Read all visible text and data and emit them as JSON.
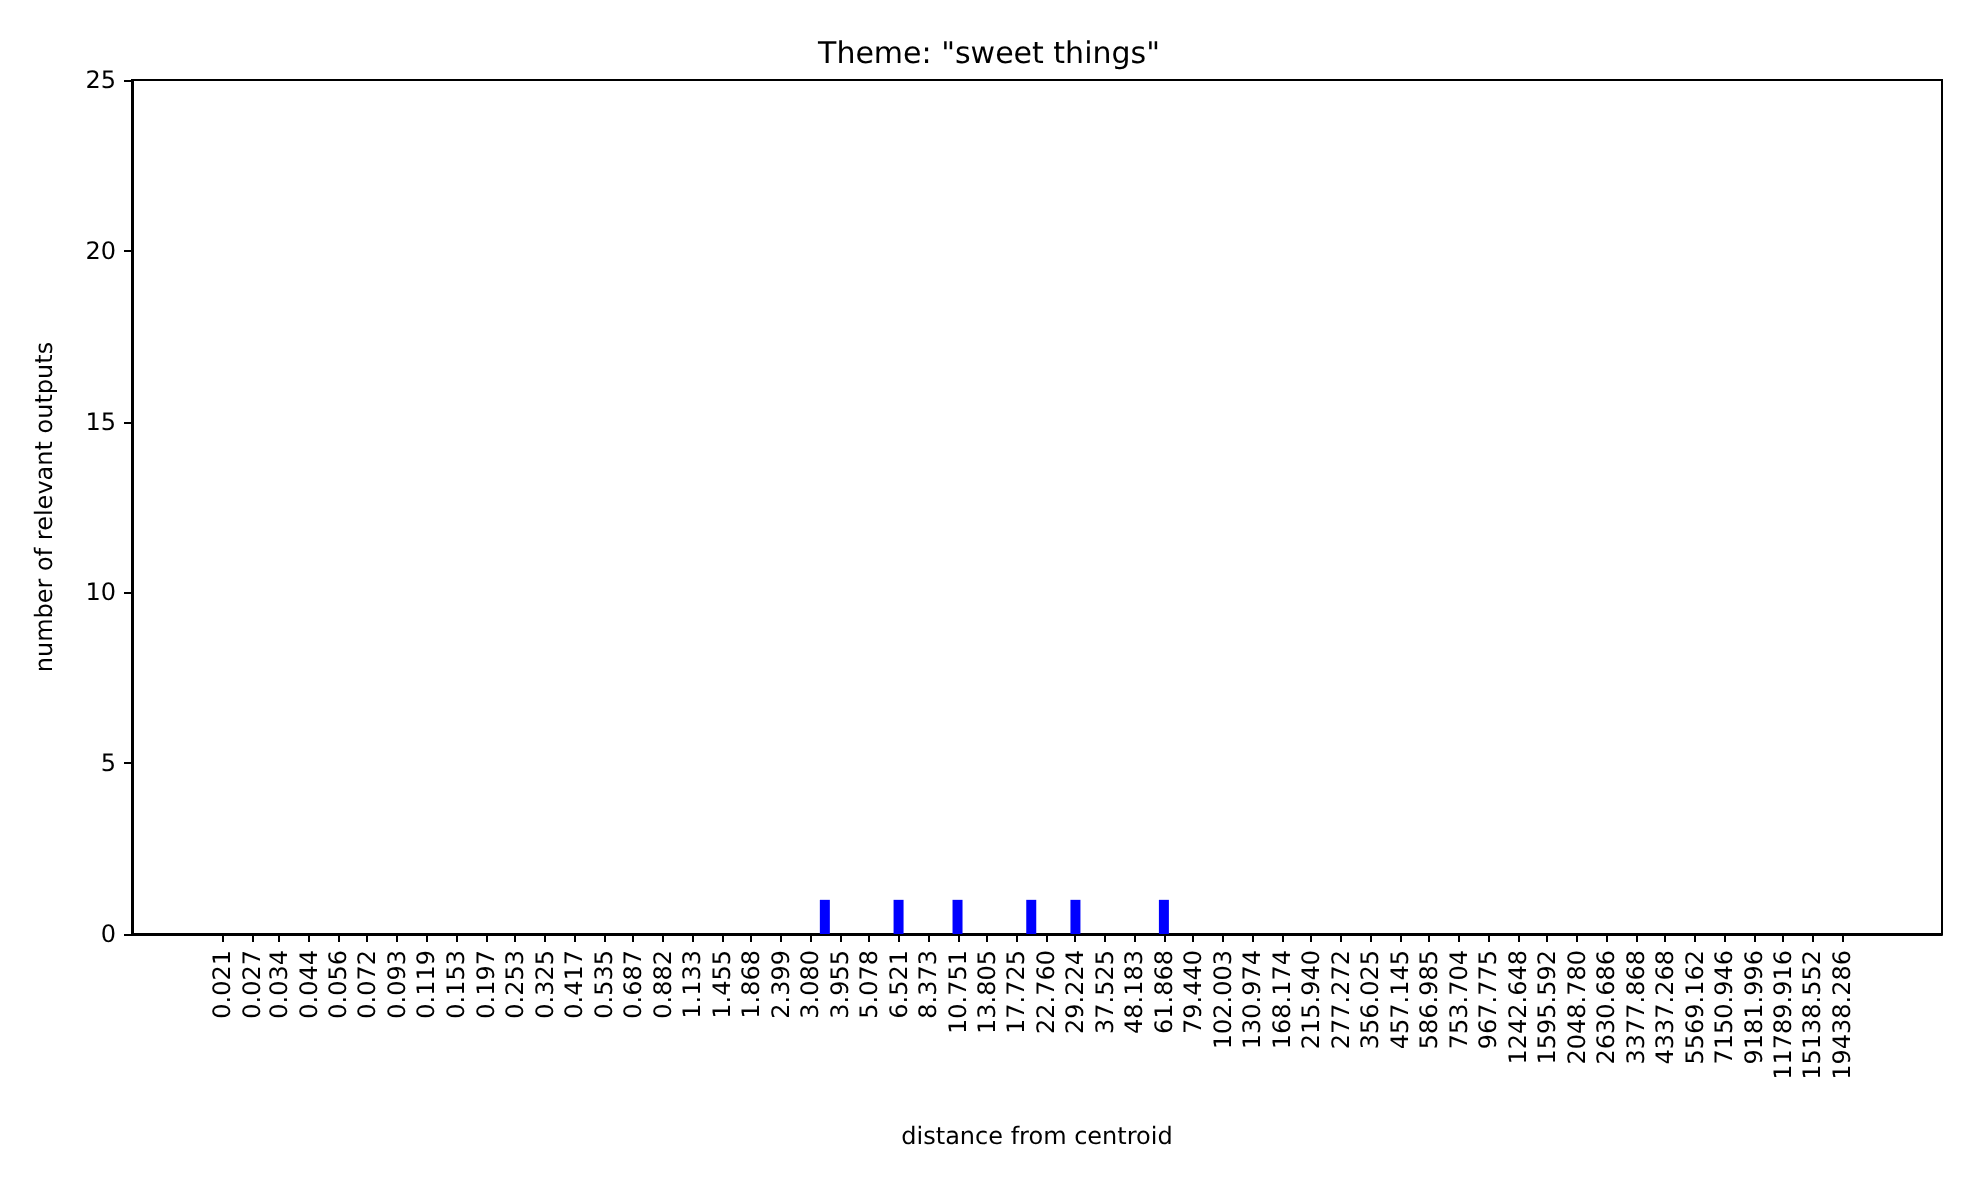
{
  "chart_data": {
    "type": "bar",
    "title": "Theme: \"sweet things\"",
    "xlabel": "distance from centroid",
    "ylabel": "number of relevant outputs",
    "log": "x",
    "x": [
      3.49,
      6.521,
      10.751,
      20.09,
      29.224,
      61.868
    ],
    "values": [
      1,
      1,
      1,
      1,
      1,
      1
    ],
    "color": "#0000ff",
    "xlim": [
      0.0098,
      45400
    ],
    "xticks": [
      0.021,
      0.027,
      0.034,
      0.044,
      0.056,
      0.072,
      0.093,
      0.119,
      0.153,
      0.197,
      0.253,
      0.325,
      0.417,
      0.535,
      0.687,
      0.882,
      1.133,
      1.455,
      1.868,
      2.399,
      {
        "value": 3.08,
        "label": "3.080"
      },
      3.955,
      5.078,
      6.521,
      8.373,
      10.751,
      13.805,
      17.725,
      {
        "value": 22.76,
        "label": "22.760"
      },
      29.224,
      37.525,
      48.183,
      61.868,
      {
        "value": 79.44,
        "label": "79.440"
      },
      102.003,
      130.974,
      168.174,
      {
        "value": 215.94,
        "label": "215.940"
      },
      277.272,
      356.025,
      457.145,
      586.985,
      753.704,
      967.775,
      1242.648,
      1595.592,
      {
        "value": 2048.78,
        "label": "2048.780"
      },
      2630.686,
      3377.868,
      4337.268,
      5569.162,
      7150.946,
      9181.996,
      11789.916,
      15138.552,
      19438.286
    ],
    "ylim": [
      0,
      25
    ],
    "yticks": [
      0,
      5,
      10,
      15,
      20,
      25
    ],
    "grid": false
  }
}
